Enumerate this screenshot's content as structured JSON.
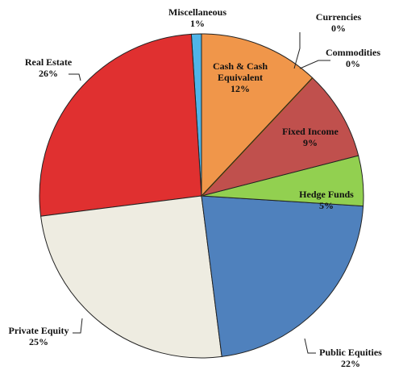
{
  "chart_data": {
    "type": "pie",
    "categories": [
      "Cash & Cash Equivalent",
      "Currencies",
      "Commodities",
      "Fixed Income",
      "Hedge Funds",
      "Public Equities",
      "Private Equity",
      "Real Estate",
      "Miscellaneous"
    ],
    "values": [
      12,
      0,
      0,
      9,
      5,
      22,
      25,
      26,
      1
    ],
    "value_labels": [
      "12%",
      "0%",
      "0%",
      "9%",
      "5%",
      "22%",
      "25%",
      "26%",
      "1%"
    ],
    "colors": [
      "#f0964a",
      "#8b5a00",
      "#c8a000",
      "#c0504d",
      "#92d050",
      "#4f81bd",
      "#eeece1",
      "#e03030",
      "#4fb4e8"
    ]
  }
}
